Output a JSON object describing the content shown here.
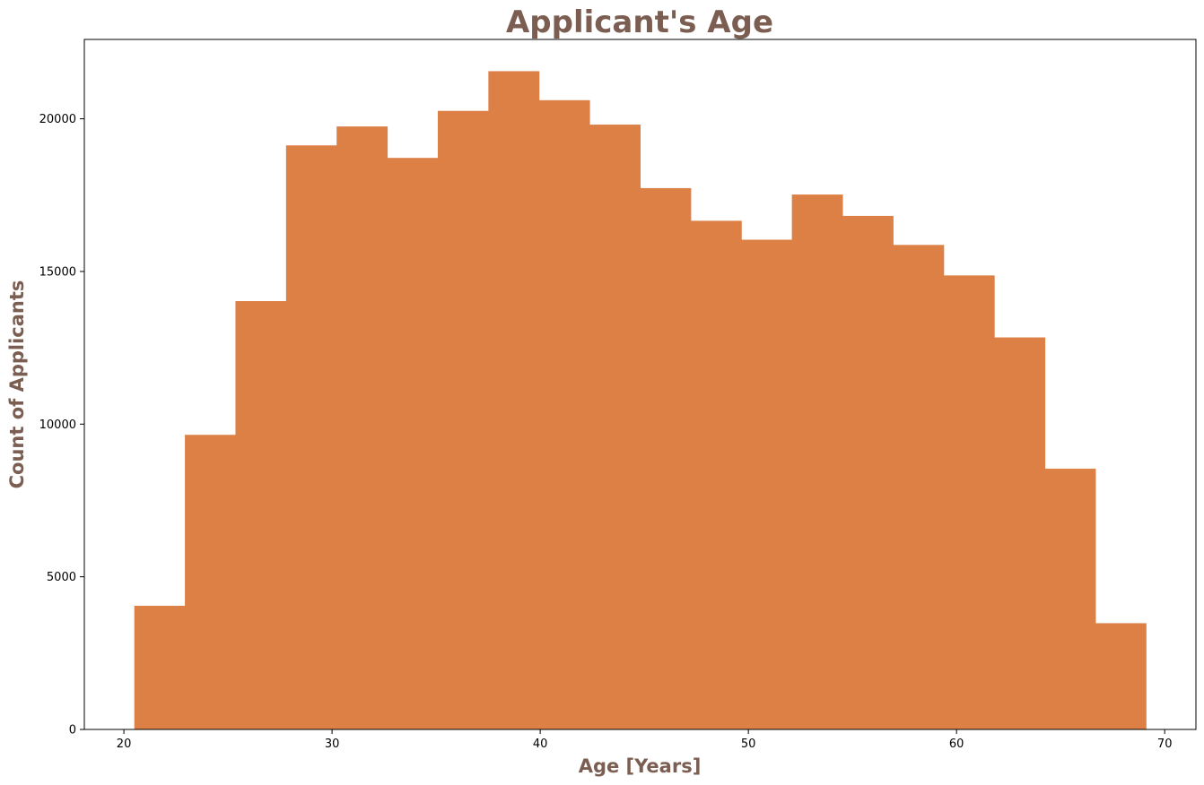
{
  "chart_data": {
    "type": "bar",
    "histogram": true,
    "title": "Applicant's Age",
    "xlabel": "Age [Years]",
    "ylabel": "Count of Applicants",
    "xlim": [
      18.1,
      71.5
    ],
    "ylim": [
      0,
      22600
    ],
    "xticks": [
      20,
      30,
      40,
      50,
      60,
      70
    ],
    "yticks": [
      0,
      5000,
      10000,
      15000,
      20000
    ],
    "bin_edges": [
      20.5,
      22.93,
      25.36,
      27.79,
      30.22,
      32.65,
      35.08,
      37.51,
      39.94,
      42.37,
      44.8,
      47.23,
      49.66,
      52.09,
      54.52,
      56.95,
      59.38,
      61.81,
      64.24,
      66.67,
      69.1
    ],
    "values": [
      4050,
      9650,
      14030,
      19130,
      19750,
      18720,
      20260,
      21560,
      20610,
      19810,
      17730,
      16660,
      16040,
      17520,
      16820,
      15870,
      14870,
      12840,
      8540,
      3480
    ],
    "grid": false,
    "legend": false
  },
  "colors": {
    "bar": "#dd8046",
    "title": "#7b5e51",
    "axis": "#000000"
  }
}
